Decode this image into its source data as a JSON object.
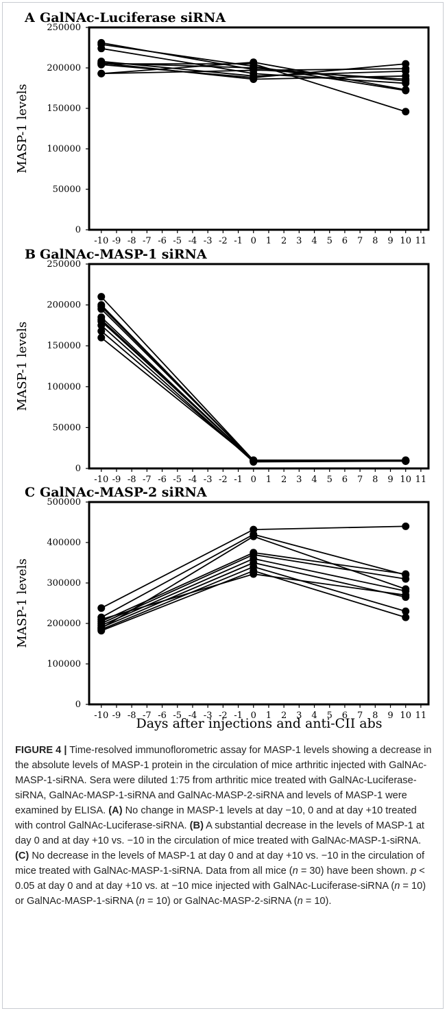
{
  "figure": {
    "xlabel": "Days after injections and anti-CII abs",
    "ylabel": "MASP-1 levels"
  },
  "chart_data": [
    {
      "panel": "A",
      "type": "line",
      "title": "GalNAc-Luciferase siRNA",
      "ylabel": "MASP-1 levels",
      "xlabel": "",
      "x": [
        -10,
        0,
        10
      ],
      "xticks": [
        -10,
        -9,
        -8,
        -7,
        -6,
        -5,
        -4,
        -3,
        -2,
        -1,
        0,
        1,
        2,
        3,
        4,
        5,
        6,
        7,
        8,
        9,
        10,
        11
      ],
      "xlim": [
        -10.8,
        11.5
      ],
      "ylim": [
        0,
        250000
      ],
      "yticks": [
        0,
        50000,
        100000,
        150000,
        200000,
        250000
      ],
      "grid": false,
      "series": [
        {
          "values": [
            231000,
            198000,
            186000
          ]
        },
        {
          "values": [
            224000,
            193000,
            181000
          ]
        },
        {
          "values": [
            208000,
            190000,
            196000
          ]
        },
        {
          "values": [
            206000,
            200000,
            184000
          ]
        },
        {
          "values": [
            205000,
            205000,
            146000
          ]
        },
        {
          "values": [
            204000,
            188000,
            205000
          ]
        },
        {
          "values": [
            193000,
            207000,
            173000
          ]
        },
        {
          "values": [
            206000,
            186000,
            190000
          ]
        },
        {
          "values": [
            229000,
            202000,
            172000
          ]
        },
        {
          "values": [
            193000,
            197000,
            199000
          ]
        }
      ]
    },
    {
      "panel": "B",
      "type": "line",
      "title": "GalNAc-MASP-1 siRNA",
      "ylabel": "MASP-1 levels",
      "xlabel": "",
      "x": [
        -10,
        0,
        10
      ],
      "xticks": [
        -10,
        -9,
        -8,
        -7,
        -6,
        -5,
        -4,
        -3,
        -2,
        -1,
        0,
        1,
        2,
        3,
        4,
        5,
        6,
        7,
        8,
        9,
        10,
        11
      ],
      "xlim": [
        -10.8,
        11.5
      ],
      "ylim": [
        0,
        250000
      ],
      "yticks": [
        0,
        50000,
        100000,
        150000,
        200000,
        250000
      ],
      "grid": false,
      "series": [
        {
          "values": [
            210000,
            10000,
            10000
          ]
        },
        {
          "values": [
            200000,
            9000,
            9000
          ]
        },
        {
          "values": [
            195000,
            10000,
            9000
          ]
        },
        {
          "values": [
            185000,
            9000,
            10000
          ]
        },
        {
          "values": [
            180000,
            10000,
            10000
          ]
        },
        {
          "values": [
            175000,
            8000,
            9000
          ]
        },
        {
          "values": [
            168000,
            9000,
            10000
          ]
        },
        {
          "values": [
            160000,
            10000,
            9000
          ]
        },
        {
          "values": [
            198000,
            10000,
            10000
          ]
        },
        {
          "values": [
            182000,
            9000,
            9000
          ]
        }
      ]
    },
    {
      "panel": "C",
      "type": "line",
      "title": "GalNAc-MASP-2 siRNA",
      "ylabel": "MASP-1 levels",
      "xlabel": "Days after injections and anti-CII abs",
      "x": [
        -10,
        0,
        10
      ],
      "xticks": [
        -10,
        -9,
        -8,
        -7,
        -6,
        -5,
        -4,
        -3,
        -2,
        -1,
        0,
        1,
        2,
        3,
        4,
        5,
        6,
        7,
        8,
        9,
        10,
        11
      ],
      "xlim": [
        -10.8,
        11.5
      ],
      "ylim": [
        0,
        500000
      ],
      "yticks": [
        0,
        100000,
        200000,
        300000,
        400000,
        500000
      ],
      "grid": false,
      "series": [
        {
          "values": [
            238000,
            432000,
            440000
          ]
        },
        {
          "values": [
            215000,
            420000,
            320000
          ]
        },
        {
          "values": [
            200000,
            370000,
            310000
          ]
        },
        {
          "values": [
            195000,
            360000,
            280000
          ]
        },
        {
          "values": [
            190000,
            350000,
            265000
          ]
        },
        {
          "values": [
            185000,
            340000,
            230000
          ]
        },
        {
          "values": [
            182000,
            330000,
            215000
          ]
        },
        {
          "values": [
            210000,
            322000,
            270000
          ]
        },
        {
          "values": [
            205000,
            375000,
            322000
          ]
        },
        {
          "values": [
            188000,
            415000,
            285000
          ]
        }
      ]
    }
  ],
  "caption": {
    "label": "FIGURE 4 |",
    "intro": " Time-resolved immunoflorometric assay for MASP-1 levels showing a decrease in the absolute levels of MASP-1 protein in the circulation of mice arthritic injected with GalNAc-MASP-1-siRNA. Sera were diluted 1:75 from arthritic mice treated with GalNAc-Luciferase-siRNA, GalNAc-MASP-1-siRNA and GalNAc-MASP-2-siRNA and levels of MASP-1 were examined by ELISA. ",
    "a_label": "(A)",
    "a_text": " No change in MASP-1 levels at day −10, 0 and at day +10 treated with control GalNAc-Luciferase-siRNA. ",
    "b_label": "(B)",
    "b_text": " A substantial decrease in the levels of MASP-1 at day 0 and at day +10 vs. −10 in the circulation of mice treated with GalNAc-MASP-1-siRNA. ",
    "c_label": "(C)",
    "c_text": " No decrease in the levels of MASP-1 at day 0 and at day +10 vs. −10 in the circulation of mice treated with GalNAc-MASP-1-siRNA. Data from all mice (",
    "n_var": "n",
    "n_all": " = 30) have been shown. ",
    "p_var": "p",
    "p_text": " < 0.05 at day 0 and at day +10 vs. at −10 mice injected with GalNAc-Luciferase-siRNA (",
    "n1": " = 10) or GalNAc-MASP-1-siRNA (",
    "n2": " = 10) or GalNAc-MASP-2-siRNA (",
    "n3": " = 10)."
  }
}
